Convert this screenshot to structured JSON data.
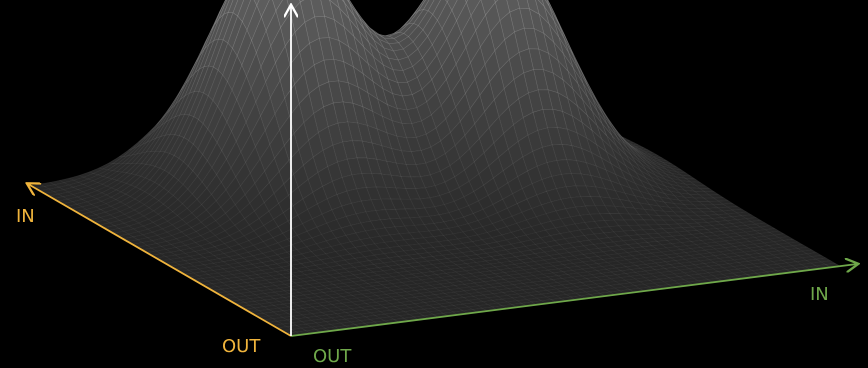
{
  "diagram": {
    "type": "3d-surface",
    "description_words": {
      "left_axis": {
        "in_label": "IN",
        "out_label": "OUT"
      },
      "right_axis": {
        "in_label": "IN",
        "out_label": "OUT"
      }
    },
    "colors": {
      "background": "#000000",
      "left_axis": "#f0b43c",
      "right_axis": "#6fa84a",
      "vertical_axis": "#ffffff",
      "mesh": "#ffffff"
    },
    "surface": {
      "peak_count": 2,
      "grid_resolution": 56
    }
  }
}
